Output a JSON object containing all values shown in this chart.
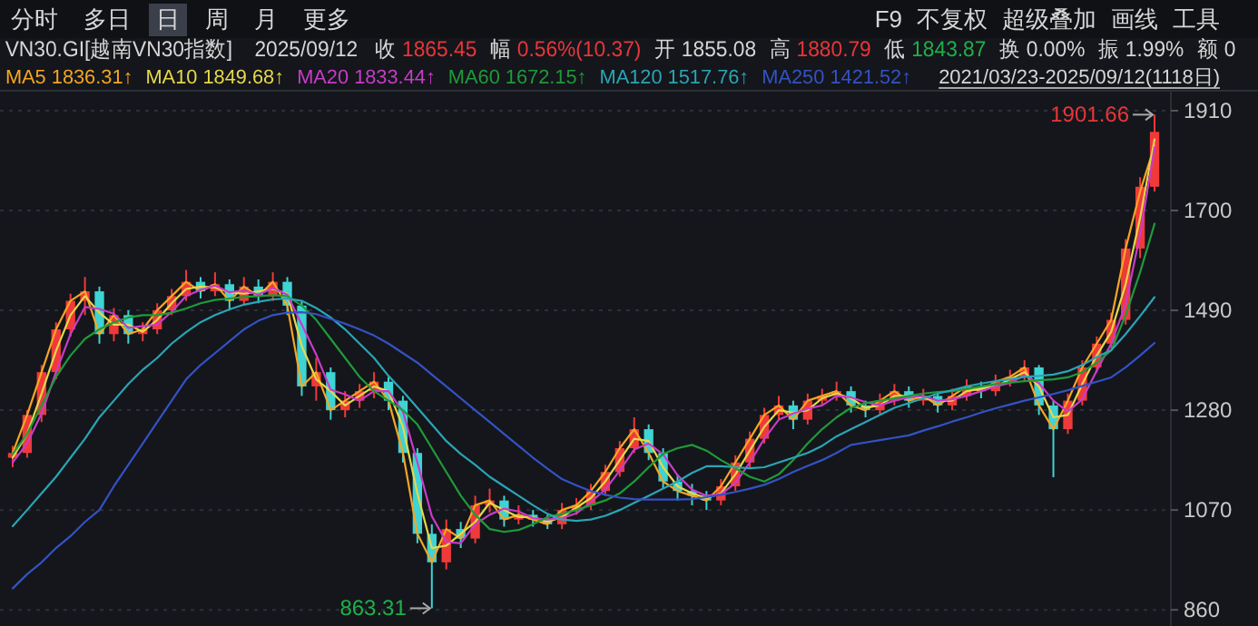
{
  "chart_data": {
    "type": "candlestick",
    "title": "VN30.GI[越南VN30指数]",
    "subtitle": "2025/09/12",
    "categories": [
      null,
      null,
      null,
      null,
      null,
      null,
      null,
      null,
      null,
      null,
      null,
      null,
      null,
      null,
      null,
      null,
      null,
      null,
      null,
      null,
      null,
      null,
      null,
      null,
      null,
      null,
      null,
      null,
      null,
      null,
      null,
      null,
      null,
      null,
      null,
      null,
      null,
      null,
      null,
      null,
      null,
      null,
      null,
      null,
      null,
      null,
      null,
      null,
      null,
      null,
      null,
      null,
      null,
      null,
      null,
      null,
      null,
      null,
      null,
      null,
      null,
      null,
      null,
      null,
      null,
      null,
      null,
      null,
      null,
      null,
      null,
      null,
      null,
      null,
      null,
      null,
      null,
      null,
      null,
      null
    ],
    "ohlc": [
      [
        1180,
        1205,
        1160,
        1190
      ],
      [
        1190,
        1280,
        1180,
        1270
      ],
      [
        1270,
        1375,
        1255,
        1360
      ],
      [
        1360,
        1465,
        1345,
        1450
      ],
      [
        1450,
        1525,
        1435,
        1510
      ],
      [
        1510,
        1560,
        1480,
        1530
      ],
      [
        1530,
        1540,
        1420,
        1440
      ],
      [
        1440,
        1495,
        1425,
        1480
      ],
      [
        1480,
        1490,
        1420,
        1440
      ],
      [
        1440,
        1465,
        1425,
        1450
      ],
      [
        1450,
        1505,
        1440,
        1490
      ],
      [
        1490,
        1535,
        1480,
        1520
      ],
      [
        1520,
        1575,
        1510,
        1550
      ],
      [
        1550,
        1560,
        1515,
        1530
      ],
      [
        1530,
        1570,
        1520,
        1545
      ],
      [
        1545,
        1555,
        1490,
        1510
      ],
      [
        1510,
        1560,
        1500,
        1540
      ],
      [
        1540,
        1555,
        1505,
        1520
      ],
      [
        1520,
        1570,
        1510,
        1550
      ],
      [
        1550,
        1560,
        1480,
        1500
      ],
      [
        1500,
        1510,
        1310,
        1330
      ],
      [
        1330,
        1390,
        1300,
        1360
      ],
      [
        1360,
        1370,
        1260,
        1280
      ],
      [
        1280,
        1320,
        1265,
        1300
      ],
      [
        1300,
        1335,
        1285,
        1320
      ],
      [
        1320,
        1360,
        1305,
        1340
      ],
      [
        1340,
        1350,
        1280,
        1300
      ],
      [
        1300,
        1310,
        1170,
        1190
      ],
      [
        1190,
        1200,
        1000,
        1020
      ],
      [
        1020,
        1040,
        863.31,
        960
      ],
      [
        960,
        1050,
        945,
        1030
      ],
      [
        1030,
        1045,
        990,
        1010
      ],
      [
        1010,
        1100,
        1000,
        1080
      ],
      [
        1080,
        1115,
        1065,
        1090
      ],
      [
        1090,
        1100,
        1035,
        1050
      ],
      [
        1050,
        1080,
        1040,
        1060
      ],
      [
        1060,
        1070,
        1035,
        1050
      ],
      [
        1050,
        1060,
        1030,
        1040
      ],
      [
        1040,
        1085,
        1030,
        1070
      ],
      [
        1070,
        1095,
        1060,
        1080
      ],
      [
        1080,
        1125,
        1070,
        1110
      ],
      [
        1110,
        1165,
        1100,
        1150
      ],
      [
        1150,
        1215,
        1140,
        1200
      ],
      [
        1200,
        1265,
        1190,
        1240
      ],
      [
        1240,
        1250,
        1175,
        1190
      ],
      [
        1190,
        1200,
        1115,
        1130
      ],
      [
        1130,
        1145,
        1090,
        1110
      ],
      [
        1110,
        1125,
        1080,
        1100
      ],
      [
        1100,
        1110,
        1070,
        1090
      ],
      [
        1090,
        1135,
        1080,
        1120
      ],
      [
        1120,
        1185,
        1110,
        1170
      ],
      [
        1170,
        1235,
        1160,
        1220
      ],
      [
        1220,
        1285,
        1210,
        1270
      ],
      [
        1270,
        1310,
        1260,
        1290
      ],
      [
        1290,
        1300,
        1240,
        1260
      ],
      [
        1260,
        1315,
        1250,
        1300
      ],
      [
        1300,
        1325,
        1290,
        1310
      ],
      [
        1310,
        1340,
        1300,
        1320
      ],
      [
        1320,
        1330,
        1275,
        1290
      ],
      [
        1290,
        1300,
        1265,
        1280
      ],
      [
        1280,
        1315,
        1270,
        1300
      ],
      [
        1300,
        1335,
        1290,
        1320
      ],
      [
        1320,
        1330,
        1285,
        1300
      ],
      [
        1300,
        1325,
        1290,
        1310
      ],
      [
        1310,
        1320,
        1275,
        1290
      ],
      [
        1290,
        1325,
        1280,
        1310
      ],
      [
        1310,
        1345,
        1300,
        1330
      ],
      [
        1330,
        1340,
        1305,
        1320
      ],
      [
        1320,
        1355,
        1310,
        1340
      ],
      [
        1340,
        1365,
        1330,
        1350
      ],
      [
        1350,
        1385,
        1340,
        1370
      ],
      [
        1370,
        1375,
        1270,
        1290
      ],
      [
        1290,
        1300,
        1139,
        1240
      ],
      [
        1240,
        1315,
        1230,
        1300
      ],
      [
        1300,
        1385,
        1290,
        1370
      ],
      [
        1370,
        1435,
        1360,
        1420
      ],
      [
        1420,
        1485,
        1410,
        1470
      ],
      [
        1470,
        1640,
        1460,
        1620
      ],
      [
        1620,
        1770,
        1600,
        1750
      ],
      [
        1750,
        1901.66,
        1740,
        1865.45
      ]
    ],
    "series": [
      {
        "name": "MA5",
        "type": "line",
        "color": "#f5a623",
        "values": [
          1190,
          1270,
          1360,
          1450,
          1510,
          1530,
          1440,
          1480,
          1440,
          1450,
          1490,
          1520,
          1550,
          1530,
          1545,
          1510,
          1540,
          1520,
          1550,
          1500,
          1330,
          1360,
          1280,
          1300,
          1320,
          1340,
          1300,
          1190,
          1020,
          960,
          1030,
          1010,
          1080,
          1090,
          1050,
          1060,
          1050,
          1040,
          1070,
          1080,
          1110,
          1150,
          1200,
          1240,
          1190,
          1130,
          1110,
          1100,
          1090,
          1120,
          1170,
          1220,
          1270,
          1290,
          1260,
          1300,
          1310,
          1320,
          1290,
          1280,
          1300,
          1320,
          1300,
          1310,
          1290,
          1310,
          1330,
          1320,
          1340,
          1350,
          1370,
          1290,
          1240,
          1300,
          1370,
          1420,
          1470,
          1620,
          1740,
          1836.31
        ]
      },
      {
        "name": "MA10",
        "type": "line",
        "color": "#e6d84a",
        "values": [
          1180,
          1230,
          1315,
          1405,
          1480,
          1520,
          1485,
          1460,
          1460,
          1445,
          1470,
          1505,
          1535,
          1540,
          1538,
          1528,
          1525,
          1530,
          1535,
          1525,
          1415,
          1345,
          1320,
          1290,
          1310,
          1330,
          1320,
          1245,
          1105,
          990,
          995,
          1020,
          1045,
          1085,
          1070,
          1055,
          1055,
          1045,
          1055,
          1075,
          1095,
          1130,
          1175,
          1220,
          1215,
          1160,
          1120,
          1105,
          1095,
          1105,
          1145,
          1195,
          1245,
          1280,
          1275,
          1280,
          1305,
          1315,
          1305,
          1285,
          1290,
          1310,
          1310,
          1305,
          1300,
          1300,
          1320,
          1325,
          1330,
          1345,
          1360,
          1330,
          1265,
          1270,
          1335,
          1395,
          1445,
          1545,
          1685,
          1849.68
        ]
      },
      {
        "name": "MA20",
        "type": "line",
        "color": "#c83cc8",
        "values": [
          1170,
          1210,
          1273,
          1360,
          1440,
          1497,
          1493,
          1483,
          1453,
          1457,
          1460,
          1487,
          1520,
          1533,
          1542,
          1528,
          1532,
          1523,
          1537,
          1523,
          1460,
          1397,
          1323,
          1313,
          1300,
          1320,
          1320,
          1277,
          1170,
          1057,
          1003,
          1000,
          1040,
          1060,
          1073,
          1067,
          1053,
          1050,
          1053,
          1063,
          1087,
          1113,
          1153,
          1197,
          1210,
          1187,
          1143,
          1113,
          1100,
          1103,
          1127,
          1170,
          1220,
          1260,
          1273,
          1283,
          1290,
          1310,
          1307,
          1297,
          1290,
          1300,
          1307,
          1310,
          1300,
          1303,
          1310,
          1320,
          1330,
          1337,
          1353,
          1337,
          1300,
          1277,
          1303,
          1363,
          1420,
          1503,
          1650,
          1833.44
        ]
      },
      {
        "name": "MA60",
        "type": "line",
        "color": "#1f9a3a",
        "values": [
          1188,
          1230,
          1290,
          1350,
          1395,
          1430,
          1450,
          1465,
          1475,
          1480,
          1480,
          1485,
          1494,
          1505,
          1512,
          1515,
          1518,
          1520,
          1522,
          1520,
          1500,
          1470,
          1430,
          1390,
          1350,
          1320,
          1300,
          1280,
          1250,
          1200,
          1150,
          1100,
          1060,
          1030,
          1024,
          1028,
          1040,
          1055,
          1062,
          1070,
          1080,
          1090,
          1105,
          1130,
          1160,
          1188,
          1200,
          1207,
          1195,
          1175,
          1158,
          1140,
          1130,
          1145,
          1175,
          1210,
          1240,
          1265,
          1285,
          1295,
          1300,
          1305,
          1310,
          1315,
          1318,
          1320,
          1325,
          1330,
          1335,
          1338,
          1341,
          1343,
          1345,
          1349,
          1360,
          1380,
          1406,
          1480,
          1570,
          1672.15
        ]
      },
      {
        "name": "MA120",
        "type": "line",
        "color": "#2aa5b5",
        "values": [
          1036,
          1070,
          1105,
          1140,
          1180,
          1220,
          1265,
          1300,
          1335,
          1365,
          1390,
          1420,
          1444,
          1465,
          1480,
          1492,
          1502,
          1508,
          1513,
          1515,
          1510,
          1495,
          1475,
          1450,
          1420,
          1390,
          1352,
          1320,
          1285,
          1250,
          1215,
          1188,
          1165,
          1140,
          1120,
          1100,
          1080,
          1062,
          1050,
          1047,
          1050,
          1058,
          1070,
          1085,
          1100,
          1115,
          1130,
          1148,
          1162,
          1162,
          1160,
          1158,
          1160,
          1170,
          1180,
          1190,
          1205,
          1225,
          1240,
          1255,
          1270,
          1285,
          1295,
          1305,
          1315,
          1322,
          1330,
          1336,
          1341,
          1345,
          1350,
          1352,
          1355,
          1362,
          1375,
          1392,
          1406,
          1440,
          1478,
          1517.76
        ]
      },
      {
        "name": "MA250",
        "type": "line",
        "color": "#3452c4",
        "values": [
          905,
          935,
          960,
          990,
          1015,
          1045,
          1070,
          1120,
          1165,
          1210,
          1255,
          1300,
          1345,
          1375,
          1400,
          1425,
          1450,
          1468,
          1480,
          1485,
          1486,
          1482,
          1472,
          1462,
          1450,
          1437,
          1420,
          1400,
          1380,
          1355,
          1330,
          1305,
          1280,
          1255,
          1230,
          1205,
          1180,
          1157,
          1135,
          1122,
          1110,
          1102,
          1096,
          1093,
          1092,
          1092,
          1092,
          1093,
          1097,
          1102,
          1108,
          1115,
          1123,
          1135,
          1150,
          1163,
          1175,
          1190,
          1207,
          1212,
          1217,
          1222,
          1227,
          1237,
          1246,
          1256,
          1265,
          1275,
          1284,
          1292,
          1300,
          1307,
          1314,
          1322,
          1331,
          1340,
          1349,
          1370,
          1395,
          1421.52
        ]
      }
    ],
    "annotations": [
      "分时",
      "多日",
      "日",
      "周",
      "月",
      "更多",
      "F9",
      "不复权",
      "超级叠加",
      "画线",
      "工具",
      "收 1865.45",
      "幅 0.56%(10.37)",
      "开 1855.08",
      "高 1880.79",
      "低 1843.87",
      "换 0.00%",
      "振 1.99%",
      "额 0",
      "1836.31↑",
      "1849.68↑",
      "1833.44↑",
      "1672.15↑",
      "1517.76↑",
      "1421.52↑",
      "2021/03/23-2025/09/12(1118日)",
      "1901.66",
      "863.31"
    ],
    "ylim": [
      826,
      1952
    ],
    "yticks": [
      860,
      1070,
      1280,
      1490,
      1700,
      1910
    ],
    "grid": "y",
    "legend": "top left",
    "tick_labels": "y"
  }
}
